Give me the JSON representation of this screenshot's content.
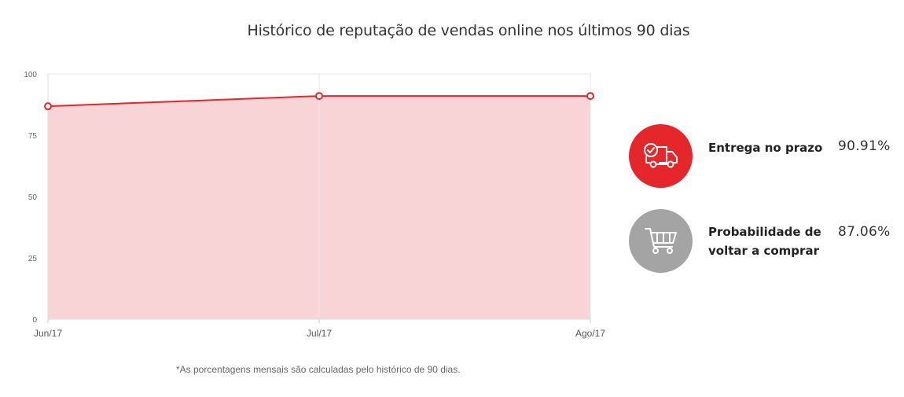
{
  "title": "Histórico de reputação de vendas online nos últimos 90 dias",
  "footnote": "*As porcentagens mensais são calculadas pelo histórico de 90 dias.",
  "stats": [
    {
      "label": "Entrega no prazo",
      "value": "90.91%",
      "icon": "delivery-truck-clock-icon",
      "color": "#e5262b"
    },
    {
      "label_line1": "Probabilidade de",
      "label_line2": "voltar a comprar",
      "value": "87.06%",
      "icon": "shopping-cart-icon",
      "color": "#a4a4a4"
    }
  ],
  "colors": {
    "line": "#e5262b",
    "area": "#f9d4d6",
    "grid": "#e6e6e6"
  },
  "chart_data": {
    "type": "area",
    "categories": [
      "Jun/17",
      "Jul/17",
      "Ago/17"
    ],
    "values": [
      86.8,
      91.0,
      91.0
    ],
    "ylim": [
      0,
      100
    ],
    "yticks": [
      0,
      25,
      50,
      75,
      100
    ],
    "grid": true
  }
}
